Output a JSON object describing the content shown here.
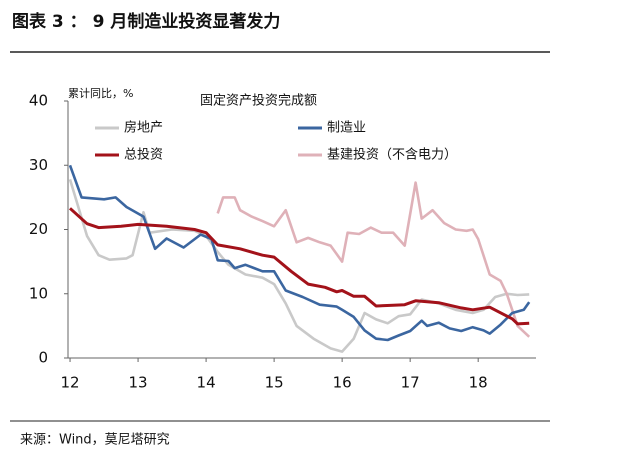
{
  "header": {
    "title": "图表 3 ： 9 月制造业投资显著发力"
  },
  "chart_data": {
    "type": "line",
    "title": "固定资产投资完成额",
    "y_label": "累计同比，%",
    "xlim": [
      11.97,
      18.85
    ],
    "xticks": [
      12,
      13,
      14,
      15,
      16,
      17,
      18
    ],
    "ylim": [
      0,
      40
    ],
    "yticks": [
      0,
      10,
      20,
      30,
      40
    ],
    "series": [
      {
        "name": "房地产",
        "color": "#c9c9c9",
        "x": [
          12.0,
          12.25,
          12.42,
          12.58,
          12.83,
          12.92,
          13.08,
          13.17,
          13.5,
          13.83,
          14.0,
          14.17,
          14.33,
          14.58,
          14.83,
          15.0,
          15.17,
          15.33,
          15.58,
          15.83,
          16.0,
          16.17,
          16.33,
          16.5,
          16.67,
          16.83,
          17.0,
          17.17,
          17.42,
          17.67,
          17.92,
          18.08,
          18.25,
          18.42,
          18.58,
          18.75
        ],
        "values": [
          27.8,
          19,
          16,
          15.3,
          15.5,
          16,
          22.7,
          19.5,
          20,
          19.8,
          19,
          16.5,
          14.5,
          13,
          12.5,
          11.5,
          8.5,
          5,
          3,
          1.5,
          1,
          3,
          7,
          6,
          5.4,
          6.5,
          6.8,
          9.1,
          8.5,
          7.5,
          7,
          7.5,
          9.5,
          10,
          9.8,
          9.9
        ]
      },
      {
        "name": "制造业",
        "color": "#3b66a0",
        "x": [
          12.0,
          12.17,
          12.5,
          12.67,
          12.83,
          13.08,
          13.25,
          13.42,
          13.67,
          13.92,
          14.08,
          14.17,
          14.33,
          14.42,
          14.58,
          14.83,
          15.0,
          15.17,
          15.42,
          15.67,
          15.92,
          16.0,
          16.17,
          16.33,
          16.5,
          16.67,
          16.83,
          17.0,
          17.17,
          17.25,
          17.42,
          17.58,
          17.75,
          17.92,
          18.08,
          18.17,
          18.33,
          18.5,
          18.67,
          18.75
        ],
        "values": [
          30,
          25,
          24.7,
          25,
          23.5,
          22,
          17,
          18.6,
          17.2,
          19.2,
          18.5,
          15.2,
          15.1,
          14,
          14.5,
          13.5,
          13.5,
          10.5,
          9.5,
          8.3,
          8,
          7.5,
          6.4,
          4.3,
          3,
          2.8,
          3.5,
          4.2,
          5.8,
          5,
          5.5,
          4.6,
          4.2,
          4.8,
          4.3,
          3.8,
          5.2,
          7,
          7.5,
          8.7
        ]
      },
      {
        "name": "总投资",
        "color": "#a3121a",
        "x": [
          12.0,
          12.25,
          12.42,
          12.75,
          13.0,
          13.42,
          13.83,
          14.0,
          14.17,
          14.5,
          14.83,
          15.0,
          15.25,
          15.5,
          15.75,
          15.92,
          16.0,
          16.17,
          16.33,
          16.5,
          16.75,
          16.92,
          17.08,
          17.42,
          17.75,
          17.92,
          18.17,
          18.5,
          18.58,
          18.75
        ],
        "values": [
          23.3,
          20.9,
          20.3,
          20.5,
          20.8,
          20.5,
          20,
          19.5,
          17.6,
          17,
          16,
          15.7,
          13.5,
          11.5,
          11,
          10.3,
          10.5,
          9.6,
          9.6,
          8.1,
          8.2,
          8.3,
          8.9,
          8.6,
          7.8,
          7.5,
          7.9,
          6.1,
          5.3,
          5.4
        ]
      },
      {
        "name": "基建投资（不含电力）",
        "color": "#dfb1b8",
        "x": [
          14.17,
          14.25,
          14.42,
          14.5,
          14.67,
          14.83,
          15.0,
          15.17,
          15.33,
          15.5,
          15.67,
          15.83,
          16.0,
          16.08,
          16.25,
          16.42,
          16.58,
          16.75,
          16.92,
          17.08,
          17.17,
          17.33,
          17.5,
          17.67,
          17.83,
          17.92,
          18.0,
          18.17,
          18.33,
          18.42,
          18.58,
          18.75
        ],
        "values": [
          22.5,
          25,
          25,
          23,
          22,
          21.3,
          20.5,
          23,
          18,
          18.7,
          18,
          17.5,
          15,
          19.5,
          19.3,
          20.3,
          19.5,
          19.5,
          17.5,
          27.3,
          21.7,
          23,
          21,
          20,
          19.8,
          20,
          18.5,
          13,
          12,
          10,
          5,
          3.3
        ]
      }
    ]
  },
  "footer": {
    "source": "来源：Wind，莫尼塔研究"
  }
}
